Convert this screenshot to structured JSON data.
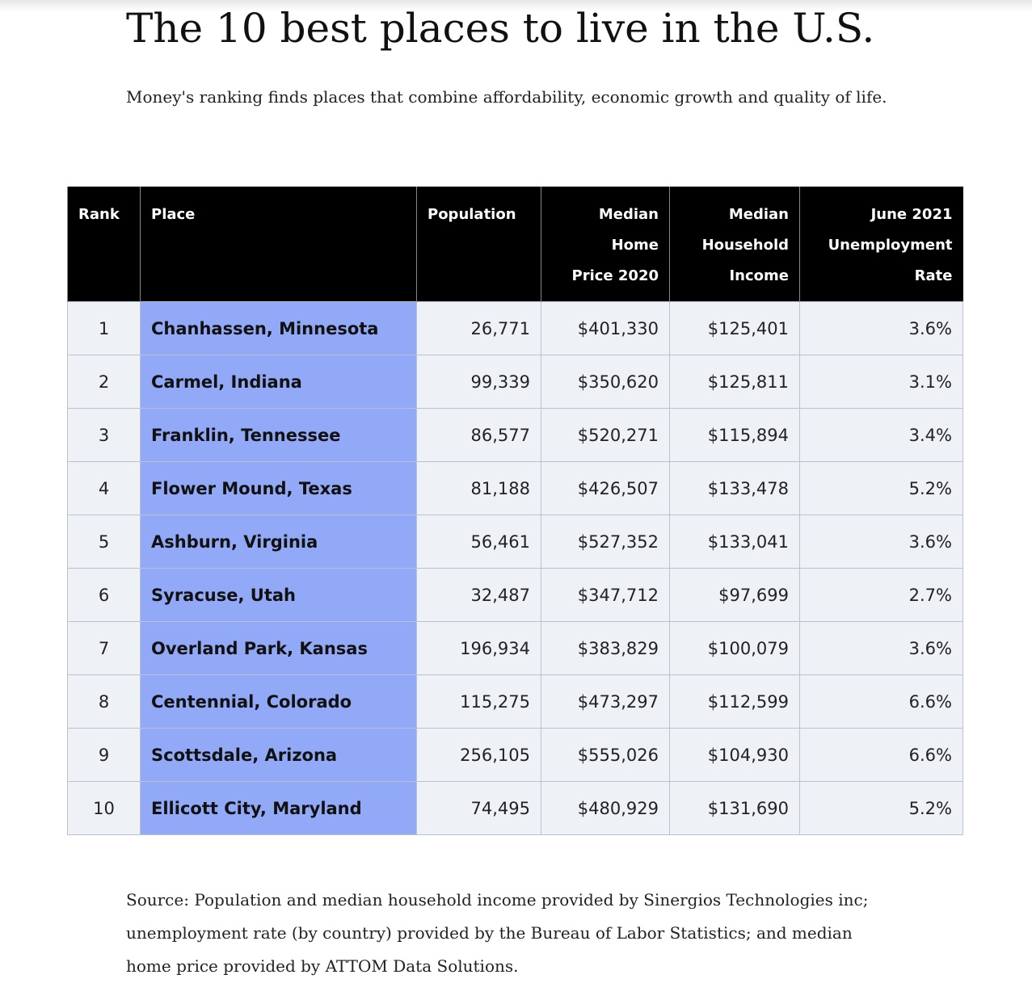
{
  "header": {
    "title": "The 10 best places to live in the U.S.",
    "subtitle": "Money's ranking finds places that combine affordability, economic growth and quality of life."
  },
  "table": {
    "columns": [
      [
        "Rank"
      ],
      [
        "Place"
      ],
      [
        "Population"
      ],
      [
        "Median",
        "Home",
        "Price 2020"
      ],
      [
        "Median",
        "Household",
        "Income"
      ],
      [
        "June 2021",
        "Unemployment",
        "Rate"
      ]
    ],
    "rows": [
      [
        "1",
        "Chanhassen, Minnesota",
        "26,771",
        "$401,330",
        "$125,401",
        "3.6%"
      ],
      [
        "2",
        "Carmel, Indiana",
        "99,339",
        "$350,620",
        "$125,811",
        "3.1%"
      ],
      [
        "3",
        "Franklin, Tennessee",
        "86,577",
        "$520,271",
        "$115,894",
        "3.4%"
      ],
      [
        "4",
        "Flower Mound, Texas",
        "81,188",
        "$426,507",
        "$133,478",
        "5.2%"
      ],
      [
        "5",
        "Ashburn, Virginia",
        "56,461",
        "$527,352",
        "$133,041",
        "3.6%"
      ],
      [
        "6",
        "Syracuse, Utah",
        "32,487",
        "$347,712",
        "$97,699",
        "2.7%"
      ],
      [
        "7",
        "Overland Park, Kansas",
        "196,934",
        "$383,829",
        "$100,079",
        "3.6%"
      ],
      [
        "8",
        "Centennial, Colorado",
        "115,275",
        "$473,297",
        "$112,599",
        "6.6%"
      ],
      [
        "9",
        "Scottsdale, Arizona",
        "256,105",
        "$555,026",
        "$104,930",
        "6.6%"
      ],
      [
        "10",
        "Ellicott City, Maryland",
        "74,495",
        "$480,929",
        "$131,690",
        "5.2%"
      ]
    ]
  },
  "footer": {
    "source": "Source: Population and median household income provided by Sinergios Technologies inc; unemployment rate (by country) provided by the Bureau of Labor Statistics; and median home price provided by ATTOM Data Solutions."
  }
}
